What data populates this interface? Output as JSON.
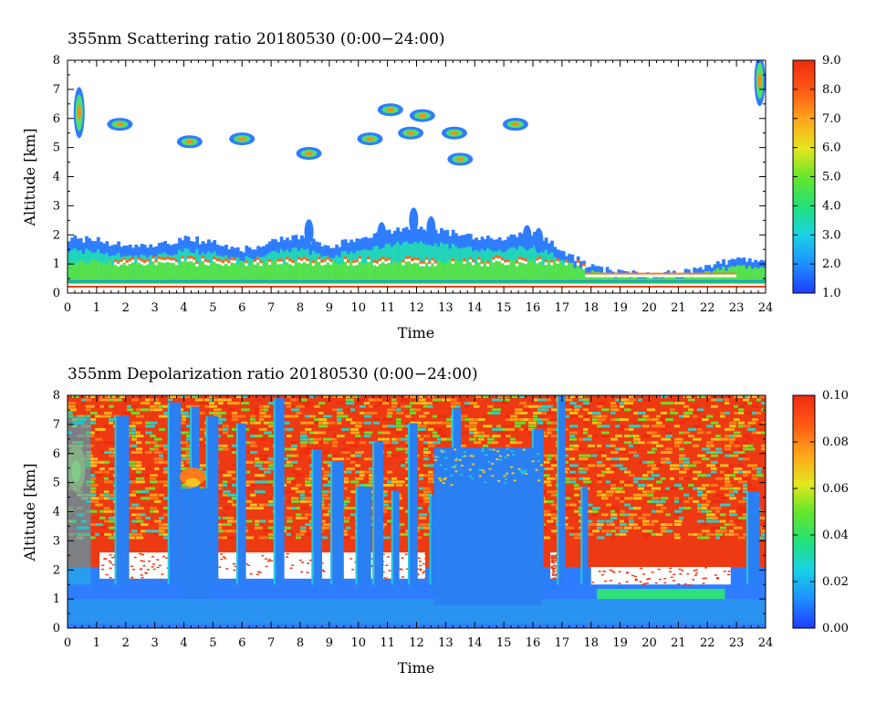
{
  "chart_data": [
    {
      "type": "heatmap",
      "title": "355nm Scattering ratio  20180530 (0:00−24:00)",
      "xlabel": "Time",
      "ylabel": "Altitude [km]",
      "xlim": [
        0,
        24
      ],
      "ylim": [
        0,
        8
      ],
      "x_ticks": [
        "0",
        "1",
        "2",
        "3",
        "4",
        "5",
        "6",
        "7",
        "8",
        "9",
        "10",
        "11",
        "12",
        "13",
        "14",
        "15",
        "16",
        "17",
        "18",
        "19",
        "20",
        "21",
        "22",
        "23",
        "24"
      ],
      "y_ticks": [
        "0",
        "1",
        "2",
        "3",
        "4",
        "5",
        "6",
        "7",
        "8"
      ],
      "colorbar": {
        "min": 1.0,
        "max": 9.0,
        "ticks": [
          "1.0",
          "2.0",
          "3.0",
          "4.0",
          "5.0",
          "6.0",
          "7.0",
          "8.0",
          "9.0"
        ]
      },
      "features": {
        "boundary_layer_top_km": [
          [
            0,
            1.9
          ],
          [
            1,
            1.8
          ],
          [
            2,
            1.6
          ],
          [
            3,
            1.6
          ],
          [
            4,
            1.9
          ],
          [
            5,
            1.7
          ],
          [
            6,
            1.5
          ],
          [
            7,
            1.8
          ],
          [
            8,
            1.9
          ],
          [
            9,
            1.6
          ],
          [
            10,
            1.9
          ],
          [
            11,
            2.1
          ],
          [
            12,
            2.2
          ],
          [
            13,
            2.1
          ],
          [
            14,
            1.9
          ],
          [
            15,
            1.9
          ],
          [
            16,
            2.1
          ],
          [
            17,
            1.4
          ],
          [
            18,
            0.9
          ],
          [
            19,
            0.7
          ],
          [
            20,
            0.6
          ],
          [
            21,
            0.7
          ],
          [
            22,
            0.9
          ],
          [
            23,
            1.2
          ],
          [
            24,
            1.1
          ]
        ],
        "high_cloud_patches_km": [
          [
            0.4,
            6.2
          ],
          [
            1.8,
            5.8
          ],
          [
            4.2,
            5.2
          ],
          [
            6.0,
            5.3
          ],
          [
            8.3,
            4.8
          ],
          [
            10.4,
            5.3
          ],
          [
            11.1,
            6.3
          ],
          [
            11.8,
            5.5
          ],
          [
            12.2,
            6.1
          ],
          [
            13.3,
            5.5
          ],
          [
            13.5,
            4.6
          ],
          [
            15.4,
            5.8
          ],
          [
            23.8,
            7.3
          ]
        ]
      }
    },
    {
      "type": "heatmap",
      "title": "355nm Depolarization ratio  20180530 (0:00−24:00)",
      "xlabel": "Time",
      "ylabel": "Altitude [km]",
      "xlim": [
        0,
        24
      ],
      "ylim": [
        0,
        8
      ],
      "x_ticks": [
        "0",
        "1",
        "2",
        "3",
        "4",
        "5",
        "6",
        "7",
        "8",
        "9",
        "10",
        "11",
        "12",
        "13",
        "14",
        "15",
        "16",
        "17",
        "18",
        "19",
        "20",
        "21",
        "22",
        "23",
        "24"
      ],
      "y_ticks": [
        "0",
        "1",
        "2",
        "3",
        "4",
        "5",
        "6",
        "7",
        "8"
      ],
      "colorbar": {
        "min": 0.0,
        "max": 0.1,
        "ticks": [
          "0.00",
          "0.02",
          "0.04",
          "0.06",
          "0.08",
          "0.10"
        ]
      },
      "features": {
        "clear_columns_time": [
          1.9,
          3.7,
          4.4,
          5.0,
          6.0,
          7.3,
          8.6,
          9.3,
          10.2,
          10.7,
          11.3,
          11.9,
          12.6,
          13.4,
          14.1,
          14.8,
          15.6,
          16.2,
          17.0,
          17.8,
          23.6
        ]
      }
    }
  ]
}
